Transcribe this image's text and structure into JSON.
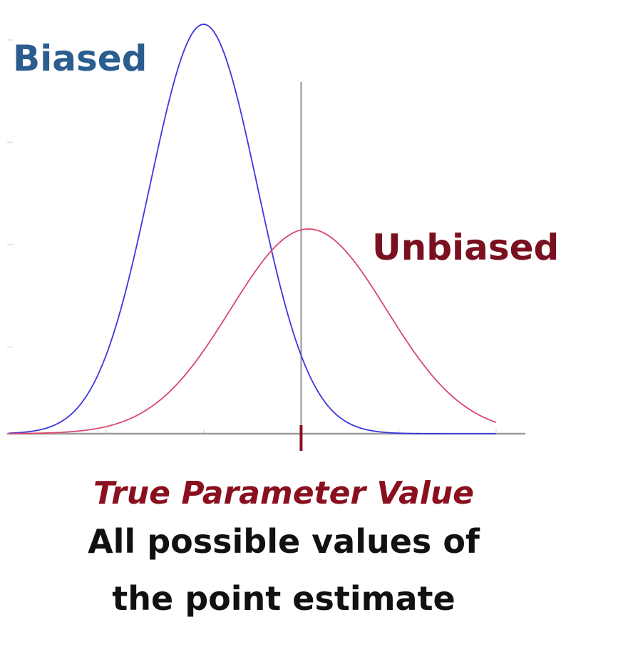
{
  "chart_data": {
    "type": "line",
    "title": "",
    "xlabel": "",
    "ylabel": "",
    "xlim": [
      0,
      10
    ],
    "ylim": [
      0,
      1.0
    ],
    "grid": false,
    "series": [
      {
        "name": "Biased",
        "kind": "normal",
        "mean": 4.0,
        "sd": 1.1,
        "peak": 1.0,
        "color": "#3b37e0",
        "label_color": "#2b5d8f"
      },
      {
        "name": "Unbiased",
        "kind": "normal",
        "mean": 6.15,
        "sd": 1.6,
        "peak": 0.5,
        "color": "#d9476b",
        "label_color": "#7a1020"
      }
    ],
    "true_parameter": 6.0,
    "reference_line_color": "#888888",
    "marker_color": "#8a1020",
    "annotations": {
      "true_parameter_label": "True Parameter Value",
      "axis_description_line1": "All possible values of",
      "axis_description_line2": "the point estimate"
    }
  }
}
